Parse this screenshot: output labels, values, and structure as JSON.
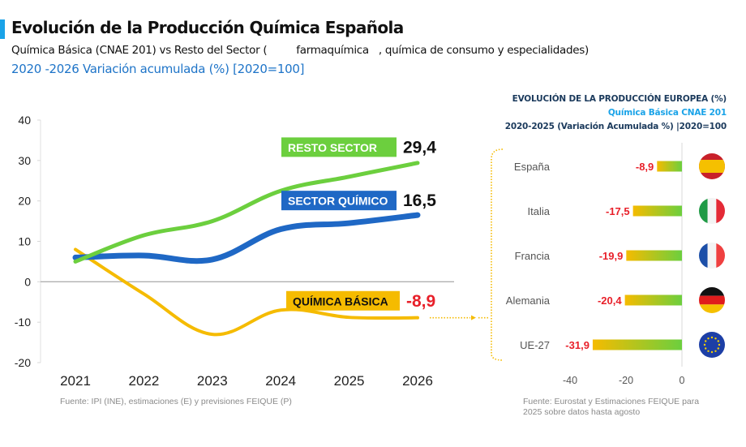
{
  "header": {
    "title": "Evolución de la Producción Química Española",
    "subtitle": "Química Básica (CNAE 201) vs Resto del Sector (         farmaquímica   , química de consumo y especialidades)",
    "subtitle2": "2020 -2026 Variación acumulada (%) [2020=100]",
    "accent_color": "#1aa3e8"
  },
  "chart_data": [
    {
      "type": "line",
      "title": "Evolución de la Producción Química Española",
      "x": [
        "2021",
        "2022",
        "2023",
        "2024",
        "2025",
        "2026"
      ],
      "ylim": [
        -20,
        40
      ],
      "yticks": [
        "40",
        "30",
        "20",
        "10",
        "0",
        "-10",
        "-20"
      ],
      "ytick_values": [
        40,
        30,
        20,
        10,
        0,
        -10,
        -20
      ],
      "xlabel": "",
      "ylabel": "",
      "grid": false,
      "series": [
        {
          "name": "RESTO SECTOR",
          "color": "#6ccf3e",
          "values": [
            5,
            11.5,
            15,
            22.5,
            26,
            29.4
          ],
          "end_label": "29,4",
          "end_label_color": "#111111"
        },
        {
          "name": "SECTOR QUÍMICO",
          "color": "#1f68c5",
          "values": [
            6,
            6.5,
            5.5,
            13,
            14.5,
            16.5
          ],
          "end_label": "16,5",
          "end_label_color": "#111111"
        },
        {
          "name": "QUÍMICA BÁSICA",
          "color": "#f5bb00",
          "values": [
            8,
            -3,
            -13,
            -7,
            -8.8,
            -8.9
          ],
          "end_label": "-8,9",
          "end_label_color": "#e8202a"
        }
      ],
      "source": "Fuente: IPI (INE), estimaciones (E) y previsiones FEIQUE (P)"
    },
    {
      "type": "bar",
      "orientation": "horizontal",
      "title": "EVOLUCIÓN DE LA PRODUCCIÓN EUROPEA (%)",
      "subtitle": "Química Básica CNAE 201",
      "subtitle2": "2020-2025 (Variación Acumulada %) |2020=100",
      "categories": [
        "España",
        "Italia",
        "Francia",
        "Alemania",
        "UE-27"
      ],
      "values": [
        -8.9,
        -17.5,
        -19.9,
        -20.4,
        -31.9
      ],
      "value_labels": [
        "-8,9",
        "-17,5",
        "-19,9",
        "-20,4",
        "-31,9"
      ],
      "flags": [
        "spain-flag",
        "italy-flag",
        "france-flag",
        "germany-flag",
        "eu-flag"
      ],
      "xlim": [
        -45,
        0
      ],
      "xticks": [
        "-40",
        "-20",
        "0"
      ],
      "xtick_values": [
        -40,
        -20,
        0
      ],
      "bar_gradient": [
        "#f5bb00",
        "#6ccf3e"
      ],
      "label_color": "#e8202a",
      "source_lines": [
        "Fuente: Eurostat y Estimaciones FEIQUE para",
        "2025 sobre datos hasta agosto"
      ]
    }
  ]
}
